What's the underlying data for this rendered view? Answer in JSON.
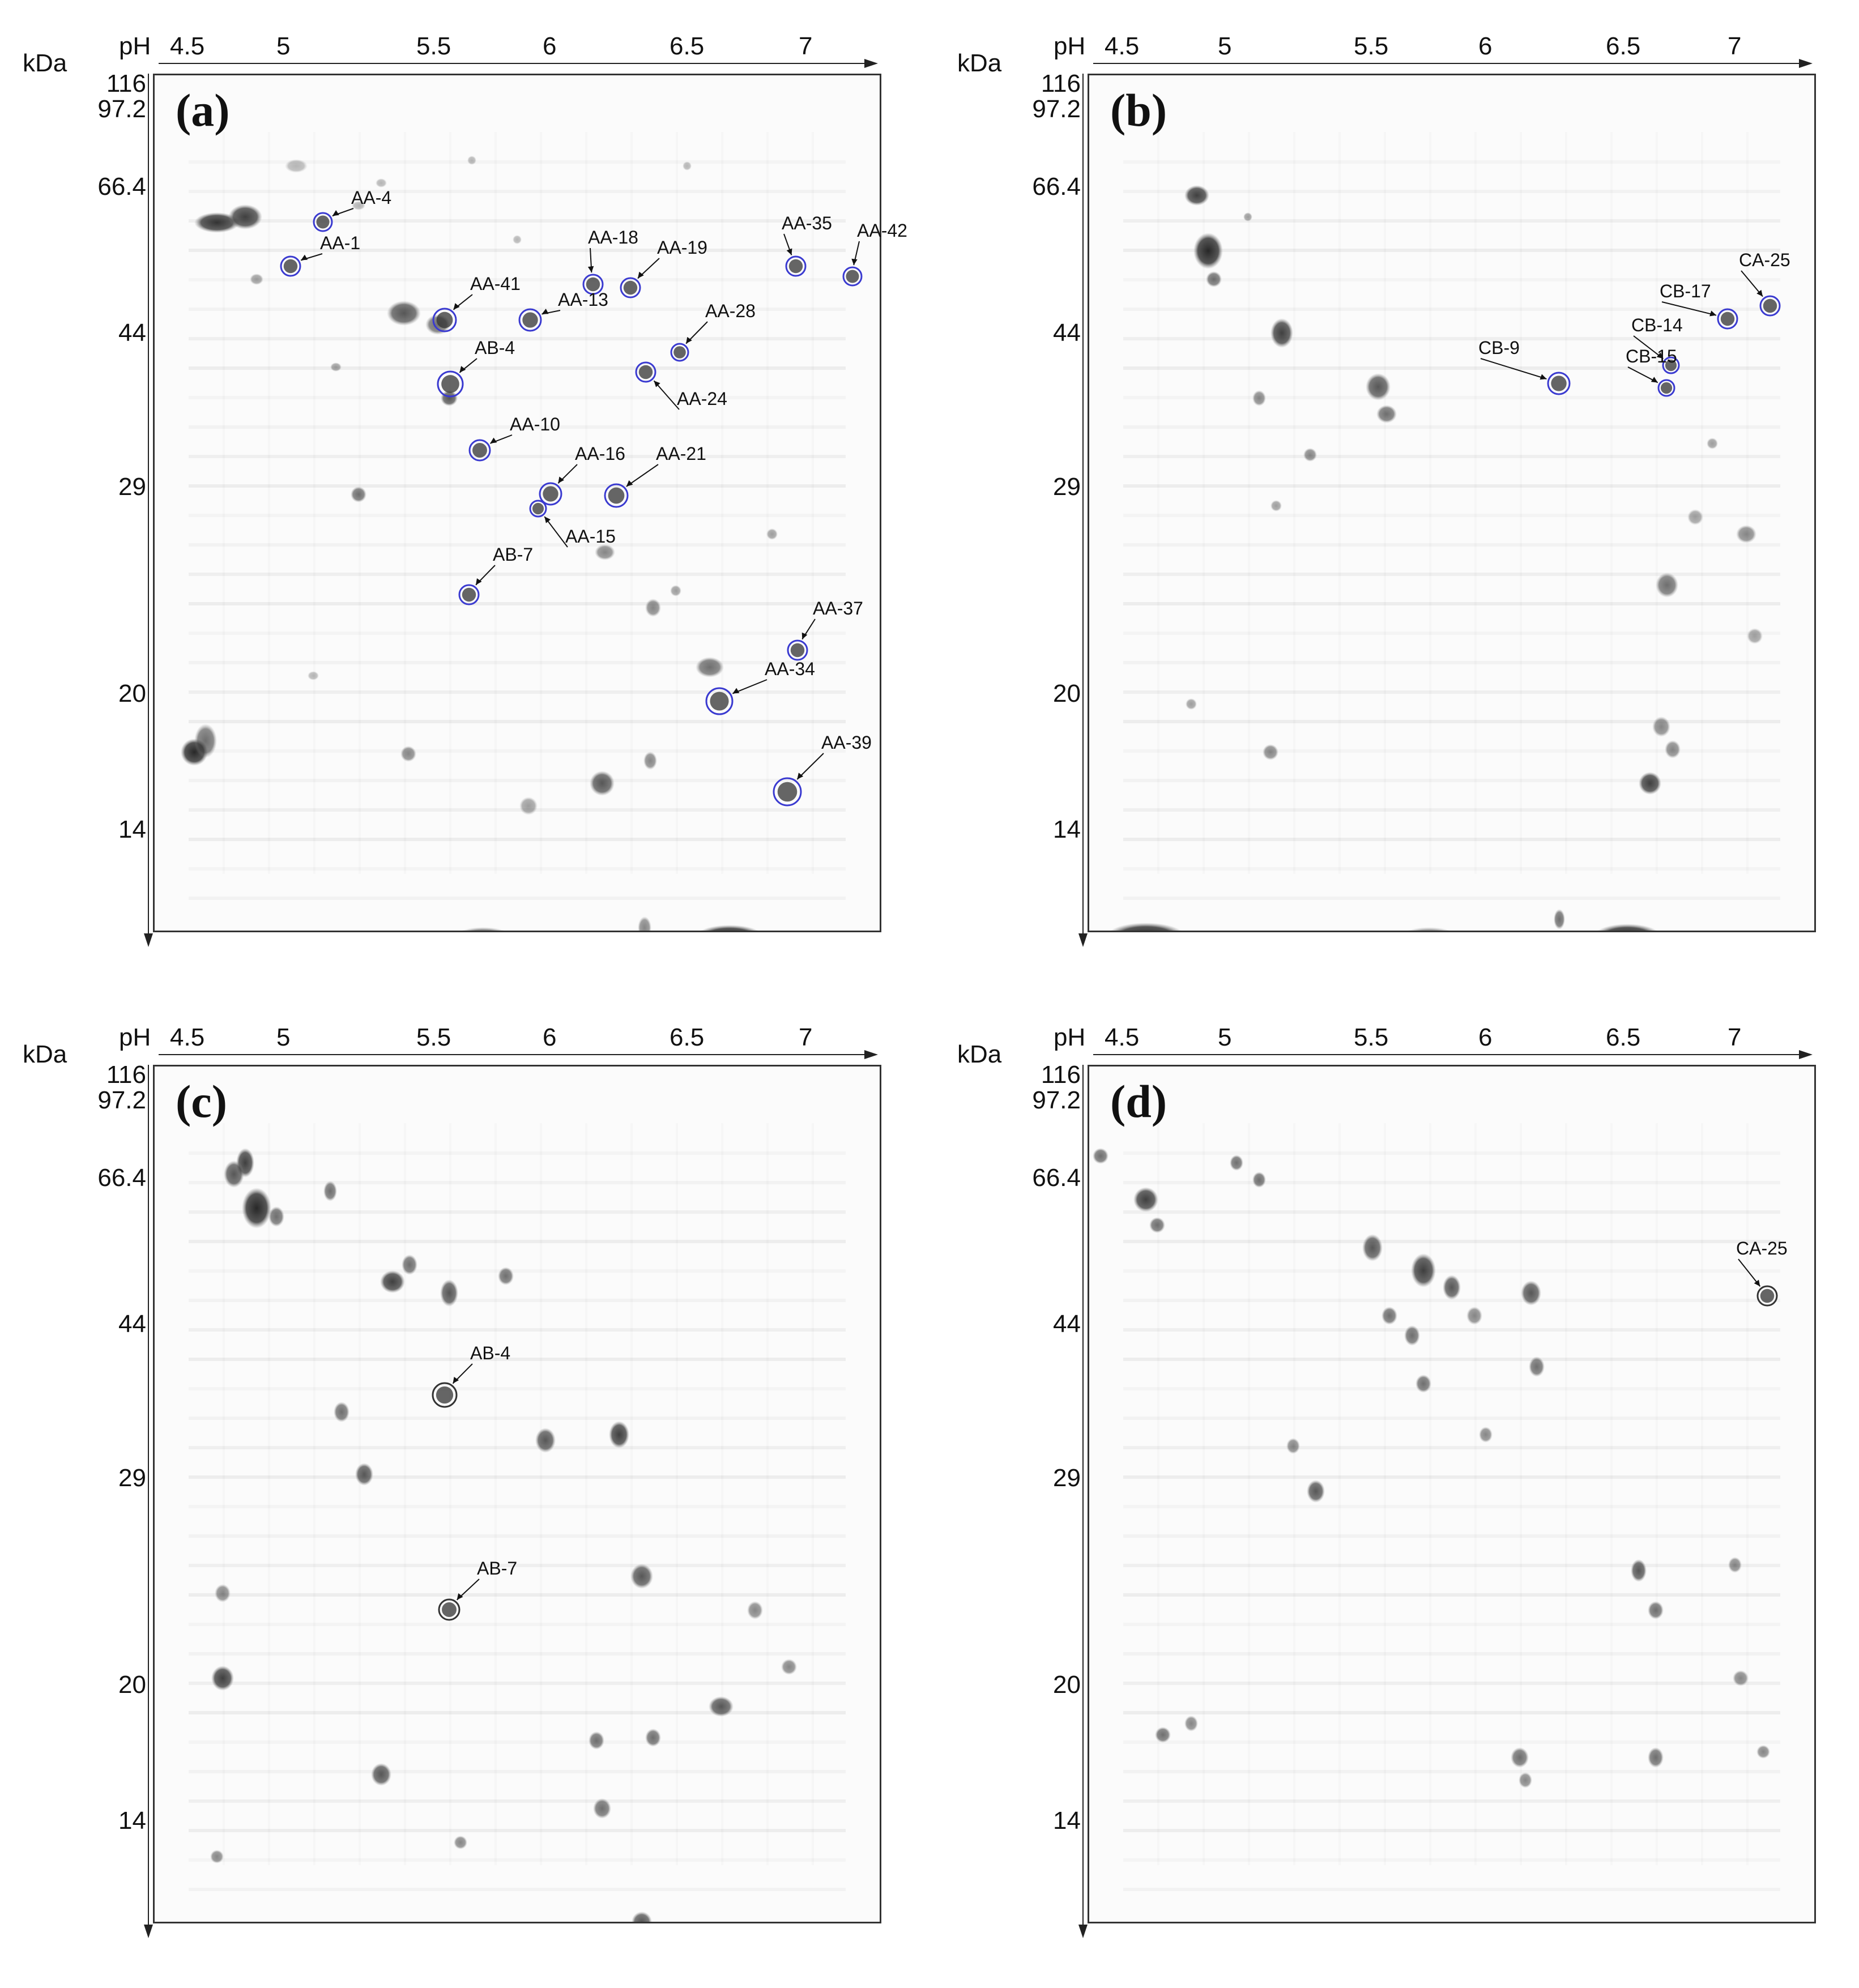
{
  "axis": {
    "ph_title": "pH",
    "kda_title": "kDa",
    "ph_ticks": [
      "4.5",
      "5",
      "5.5",
      "6",
      "6.5",
      "7"
    ],
    "kda_ticks": [
      "116",
      "97.2",
      "66.4",
      "44",
      "29",
      "20",
      "14"
    ]
  },
  "panels": [
    {
      "letter": "(a)",
      "circle_color": "#3a3ad0",
      "spots": [
        {
          "label": "AA-4"
        },
        {
          "label": "AA-1"
        },
        {
          "label": "AA-18"
        },
        {
          "label": "AA-19"
        },
        {
          "label": "AA-35"
        },
        {
          "label": "AA-42"
        },
        {
          "label": "AA-41"
        },
        {
          "label": "AA-13"
        },
        {
          "label": "AA-28"
        },
        {
          "label": "AB-4"
        },
        {
          "label": "AA-24"
        },
        {
          "label": "AA-10"
        },
        {
          "label": "AA-16"
        },
        {
          "label": "AA-21"
        },
        {
          "label": "AA-15"
        },
        {
          "label": "AB-7"
        },
        {
          "label": "AA-37"
        },
        {
          "label": "AA-34"
        },
        {
          "label": "AA-39"
        }
      ]
    },
    {
      "letter": "(b)",
      "circle_color": "#3a3ad0",
      "spots": [
        {
          "label": "CA-25"
        },
        {
          "label": "CB-17"
        },
        {
          "label": "CB-14"
        },
        {
          "label": "CB-9"
        },
        {
          "label": "CB-15"
        }
      ]
    },
    {
      "letter": "(c)",
      "circle_color": "#333333",
      "spots": [
        {
          "label": "AB-4"
        },
        {
          "label": "AB-7"
        }
      ]
    },
    {
      "letter": "(d)",
      "circle_color": "#333333",
      "spots": [
        {
          "label": "CA-25"
        }
      ]
    }
  ]
}
